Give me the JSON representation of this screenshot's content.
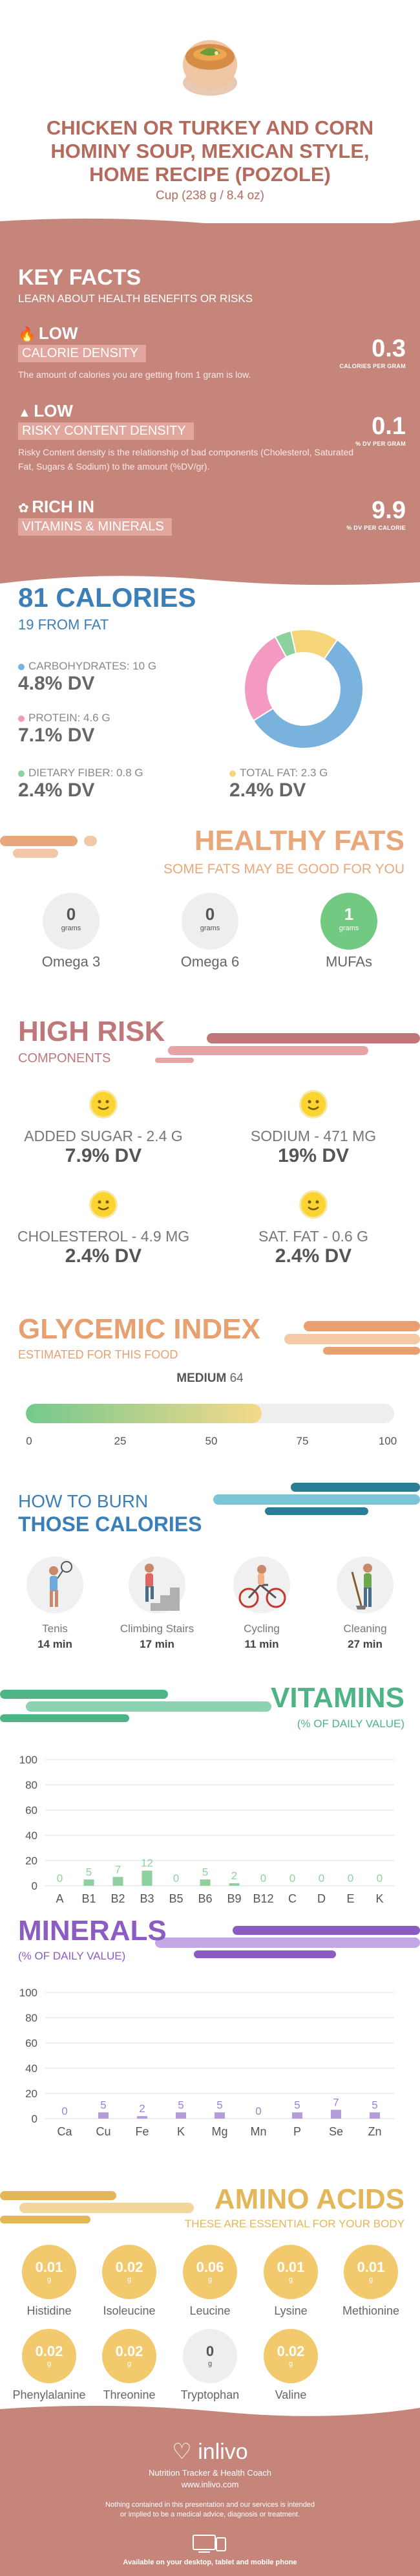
{
  "header": {
    "title": "Chicken or Turkey and Corn Hominy Soup, Mexican Style, Home recipe (Pozole)",
    "serving": "Cup (238 g / 8.4 oz)"
  },
  "key_facts": {
    "title": "KEY FACTS",
    "subtitle": "LEARN ABOUT HEALTH BENEFITS OR RISKS",
    "items": [
      {
        "level": "LOW",
        "name": "CALORIE DENSITY",
        "desc": "The amount of calories you are getting from 1 gram is low.",
        "value": "0.3",
        "unit": "CALORIES PER GRAM"
      },
      {
        "level": "LOW",
        "name": "RISKY CONTENT DENSITY",
        "desc": "Risky Content density is the relationship of bad components (Cholesterol, Saturated Fat, Sugars & Sodium) to the amount (%DV/gr).",
        "value": "0.1",
        "unit": "% DV PER GRAM"
      },
      {
        "level": "RICH IN",
        "name": "VITAMINS & MINERALS",
        "desc": "",
        "value": "9.9",
        "unit": "% DV PER CALORIE"
      }
    ]
  },
  "calories": {
    "title": "81 CALORIES",
    "subtitle": "19 FROM FAT",
    "carbs": {
      "label": "CARBOHYDRATES: 10 g",
      "dv": "4.8% DV",
      "color": "#7ab2de"
    },
    "protein": {
      "label": "PROTEIN: 4.6 g",
      "dv": "7.1% DV",
      "color": "#f49ac1"
    },
    "fiber": {
      "label": "DIETARY FIBER: 0.8 g",
      "dv": "2.4% DV",
      "color": "#8fd19e"
    },
    "fat": {
      "label": "TOTAL FAT: 2.3 g",
      "dv": "2.4% DV",
      "color": "#f7d57a"
    },
    "donut": [
      {
        "name": "Carbohydrates",
        "value": 10,
        "color": "#7ab2de"
      },
      {
        "name": "Protein",
        "value": 4.6,
        "color": "#f49ac1"
      },
      {
        "name": "Dietary fiber",
        "value": 0.8,
        "color": "#8fd19e"
      },
      {
        "name": "Total fat",
        "value": 2.3,
        "color": "#f7d57a"
      }
    ]
  },
  "healthy_fats": {
    "title": "HEALTHY FATS",
    "subtitle": "SOME FATS MAY BE GOOD FOR YOU",
    "items": [
      {
        "value": "0",
        "unit": "grams",
        "name": "Omega 3"
      },
      {
        "value": "0",
        "unit": "grams",
        "name": "Omega 6"
      },
      {
        "value": "1",
        "unit": "grams",
        "name": "MUFAs"
      }
    ]
  },
  "high_risk": {
    "title": "HIGH RISK",
    "subtitle": "COMPONENTS",
    "items": [
      {
        "label": "ADDED SUGAR - 2.4 g",
        "dv": "7.9% DV"
      },
      {
        "label": "SODIUM - 471 mg",
        "dv": "19% DV"
      },
      {
        "label": "CHOLESTEROL - 4.9 mg",
        "dv": "2.4% DV"
      },
      {
        "label": "SAT. FAT - 0.6 g",
        "dv": "2.4% DV"
      }
    ]
  },
  "glycemic": {
    "title": "GLYCEMIC INDEX",
    "subtitle": "ESTIMATED FOR THIS FOOD",
    "level": "MEDIUM",
    "value": "64",
    "fill_fraction": 0.64,
    "ticks": [
      "0",
      "25",
      "50",
      "75",
      "100"
    ]
  },
  "burn": {
    "title_a": "HOW TO BURN",
    "title_b": "THOSE CALORIES",
    "items": [
      {
        "name": "Tenis",
        "time": "14 min"
      },
      {
        "name": "Climbing Stairs",
        "time": "17 min"
      },
      {
        "name": "Cycling",
        "time": "11 min"
      },
      {
        "name": "Cleaning",
        "time": "27 min"
      }
    ]
  },
  "vitamins": {
    "title": "VITAMINS",
    "subtitle": "(% OF DAILY VALUE)",
    "y_ticks": [
      "100",
      "80",
      "60",
      "40",
      "20",
      "0"
    ]
  },
  "minerals": {
    "title": "MINERALS",
    "subtitle": "(% OF DAILY VALUE)",
    "y_ticks": [
      "100",
      "80",
      "60",
      "40",
      "20",
      "0"
    ]
  },
  "chart_data": [
    {
      "type": "bar",
      "categories": [
        "A",
        "B1",
        "B2",
        "B3",
        "B5",
        "B6",
        "B9",
        "B12",
        "C",
        "D",
        "E",
        "K"
      ],
      "values": [
        0,
        5,
        7,
        12,
        0,
        5,
        2,
        0,
        0,
        0,
        0,
        0
      ],
      "labels": [
        "0",
        "5",
        "7",
        "12",
        "0",
        "5",
        "2",
        "0",
        "0",
        "0",
        "0",
        "0"
      ],
      "ylim": [
        0,
        100
      ],
      "color": "#8fd19e",
      "grid": true
    },
    {
      "type": "bar",
      "categories": [
        "Ca",
        "Cu",
        "Fe",
        "K",
        "Mg",
        "Mn",
        "P",
        "Se",
        "Zn"
      ],
      "values": [
        0,
        5,
        2,
        5,
        5,
        0,
        5,
        7,
        5
      ],
      "labels": [
        "0",
        "5",
        "2",
        "5",
        "5",
        "0",
        "5",
        "7",
        "5"
      ],
      "ylim": [
        0,
        100
      ],
      "color": "#b39ddb",
      "grid": true
    }
  ],
  "amino_acids": {
    "title": "AMINO ACIDS",
    "subtitle": "THESE ARE ESSENTIAL FOR YOUR BODY",
    "items": [
      {
        "value": "0.01",
        "unit": "g",
        "name": "Histidine"
      },
      {
        "value": "0.02",
        "unit": "g",
        "name": "Isoleucine"
      },
      {
        "value": "0.06",
        "unit": "g",
        "name": "Leucine"
      },
      {
        "value": "0.01",
        "unit": "g",
        "name": "Lysine"
      },
      {
        "value": "0.01",
        "unit": "g",
        "name": "Methionine"
      },
      {
        "value": "0.02",
        "unit": "g",
        "name": "Phenylalanine"
      },
      {
        "value": "0.02",
        "unit": "g",
        "name": "Threonine"
      },
      {
        "value": "0",
        "unit": "g",
        "name": "Tryptophan"
      },
      {
        "value": "0.02",
        "unit": "g",
        "name": "Valine"
      }
    ]
  },
  "footer": {
    "brand": "inlivo",
    "tagline": "Nutrition Tracker & Health Coach",
    "url": "www.inlivo.com",
    "disclaimer": "Nothing contained in this presentation and our services is intended or implied to be a medical advice, diagnosis or treatment.",
    "available": "Available on your desktop, tablet and mobile phone"
  }
}
